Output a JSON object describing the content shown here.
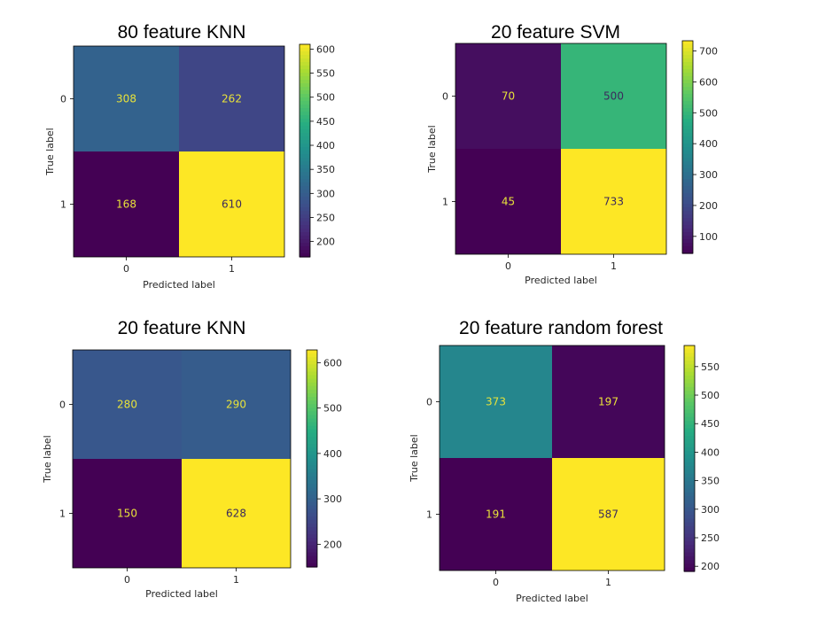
{
  "chart_data": [
    {
      "type": "heatmap",
      "title": "80 feature KNN",
      "xlabel": "Predicted label",
      "ylabel": "True label",
      "x_ticks": [
        "0",
        "1"
      ],
      "y_ticks": [
        "0",
        "1"
      ],
      "matrix": [
        [
          308,
          262
        ],
        [
          168,
          610
        ]
      ],
      "colorbar_ticks": [
        200,
        250,
        300,
        350,
        400,
        450,
        500,
        550,
        600
      ],
      "colorbar_range": [
        168,
        610
      ],
      "colormap": "viridis"
    },
    {
      "type": "heatmap",
      "title": "20 feature SVM",
      "xlabel": "Predicted label",
      "ylabel": "True label",
      "x_ticks": [
        "0",
        "1"
      ],
      "y_ticks": [
        "0",
        "1"
      ],
      "matrix": [
        [
          70,
          500
        ],
        [
          45,
          733
        ]
      ],
      "colorbar_ticks": [
        100,
        200,
        300,
        400,
        500,
        600,
        700
      ],
      "colorbar_range": [
        45,
        733
      ],
      "colormap": "viridis"
    },
    {
      "type": "heatmap",
      "title": "20 feature KNN",
      "xlabel": "Predicted label",
      "ylabel": "True label",
      "x_ticks": [
        "0",
        "1"
      ],
      "y_ticks": [
        "0",
        "1"
      ],
      "matrix": [
        [
          280,
          290
        ],
        [
          150,
          628
        ]
      ],
      "colorbar_ticks": [
        200,
        300,
        400,
        500,
        600
      ],
      "colorbar_range": [
        150,
        628
      ],
      "colormap": "viridis"
    },
    {
      "type": "heatmap",
      "title": "20 feature random forest",
      "xlabel": "Predicted label",
      "ylabel": "True label",
      "x_ticks": [
        "0",
        "1"
      ],
      "y_ticks": [
        "0",
        "1"
      ],
      "matrix": [
        [
          373,
          197
        ],
        [
          191,
          587
        ]
      ],
      "colorbar_ticks": [
        200,
        250,
        300,
        350,
        400,
        450,
        500,
        550
      ],
      "colorbar_range": [
        191,
        587
      ],
      "colormap": "viridis"
    }
  ]
}
